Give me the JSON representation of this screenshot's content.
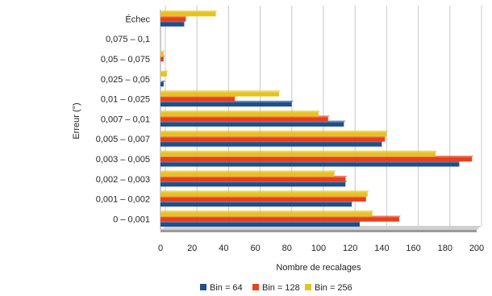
{
  "chart_data": {
    "type": "bar",
    "orientation": "horizontal",
    "categories": [
      "0 – 0,001",
      "0,001 – 0,002",
      "0,002 – 0,003",
      "0,003 – 0,005",
      "0,005 – 0,007",
      "0,007 – 0,01",
      "0,01 – 0,025",
      "0,025 – 0,05",
      "0,05 – 0,075",
      "0,075 – 0,1",
      "Échec"
    ],
    "series": [
      {
        "name": "Bin = 64",
        "color": "#1f4e8c",
        "values": [
          126,
          121,
          117,
          189,
          140,
          116,
          83,
          2,
          0,
          0,
          15
        ]
      },
      {
        "name": "Bin = 128",
        "color": "#e8401c",
        "values": [
          151,
          130,
          117,
          197,
          142,
          106,
          47,
          0,
          2,
          0,
          16
        ]
      },
      {
        "name": "Bin = 256",
        "color": "#e6c21e",
        "values": [
          134,
          131,
          110,
          174,
          143,
          100,
          75,
          4,
          2,
          0,
          35
        ]
      }
    ],
    "x_label": "Nombre de recalages",
    "y_label": "Erreur (°)",
    "xlim": [
      0,
      200
    ],
    "xticks": [
      0,
      20,
      40,
      60,
      80,
      100,
      120,
      140,
      160,
      180,
      200
    ],
    "grid": true,
    "legend": "bottom"
  }
}
